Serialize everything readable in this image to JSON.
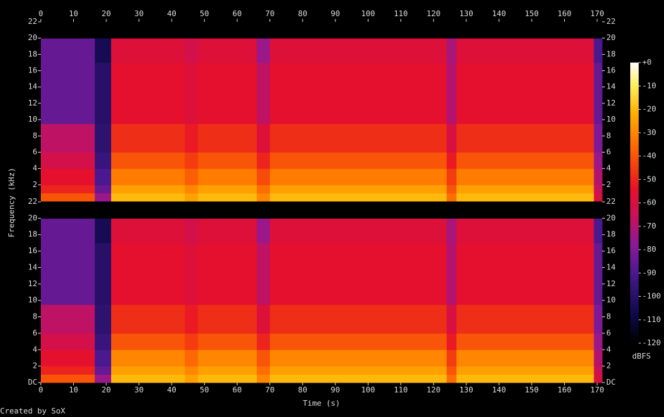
{
  "chart_data": {
    "type": "spectrogram",
    "xlabel": "Time (s)",
    "ylabel": "Frequency (kHz)",
    "footer": "Created by SoX",
    "xlim": [
      0,
      171.5
    ],
    "xticks": [
      0,
      10,
      20,
      30,
      40,
      50,
      60,
      70,
      80,
      90,
      100,
      110,
      120,
      130,
      140,
      150,
      160,
      170
    ],
    "time_edges": [
      0,
      16.5,
      21.5,
      44,
      48,
      66,
      70,
      124,
      127,
      169,
      171.5
    ],
    "freq_edges": [
      0,
      1,
      2,
      4,
      6,
      9.5,
      17,
      20,
      22
    ],
    "channels": [
      {
        "ylim": [
          0,
          22
        ],
        "yticks": [
          2,
          4,
          6,
          8,
          10,
          12,
          14,
          16,
          18,
          20,
          22
        ],
        "values": [
          [
            -40,
            -75,
            -20,
            -25,
            -20,
            -30,
            -20,
            -35,
            -20,
            -60
          ],
          [
            -50,
            -85,
            -25,
            -30,
            -25,
            -35,
            -25,
            -40,
            -25,
            -65
          ],
          [
            -55,
            -90,
            -32,
            -38,
            -32,
            -42,
            -32,
            -45,
            -32,
            -70
          ],
          [
            -62,
            -95,
            -40,
            -45,
            -40,
            -50,
            -40,
            -52,
            -40,
            -75
          ],
          [
            -68,
            -98,
            -48,
            -52,
            -48,
            -58,
            -48,
            -60,
            -48,
            -80
          ],
          [
            -85,
            -100,
            -55,
            -58,
            -55,
            -68,
            -55,
            -70,
            -55,
            -85
          ],
          [
            -85,
            -105,
            -58,
            -62,
            -58,
            -75,
            -58,
            -72,
            -58,
            -90
          ],
          [
            -120,
            -120,
            -120,
            -120,
            -120,
            -120,
            -120,
            -120,
            -120,
            -120
          ]
        ]
      },
      {
        "ylim": [
          0,
          22
        ],
        "yticks": [
          {
            "value": 0,
            "label": "DC"
          },
          2,
          4,
          6,
          8,
          10,
          12,
          14,
          16,
          18,
          20,
          22
        ],
        "values": [
          [
            -40,
            -75,
            -20,
            -25,
            -20,
            -30,
            -20,
            -35,
            -20,
            -60
          ],
          [
            -50,
            -85,
            -25,
            -30,
            -25,
            -35,
            -25,
            -40,
            -25,
            -65
          ],
          [
            -55,
            -90,
            -30,
            -36,
            -30,
            -40,
            -30,
            -45,
            -30,
            -70
          ],
          [
            -62,
            -95,
            -40,
            -45,
            -40,
            -50,
            -40,
            -52,
            -40,
            -75
          ],
          [
            -68,
            -98,
            -48,
            -52,
            -48,
            -58,
            -48,
            -60,
            -48,
            -80
          ],
          [
            -85,
            -100,
            -55,
            -58,
            -55,
            -68,
            -55,
            -70,
            -55,
            -85
          ],
          [
            -85,
            -105,
            -58,
            -62,
            -58,
            -75,
            -58,
            -72,
            -58,
            -90
          ],
          [
            -120,
            -120,
            -120,
            -120,
            -120,
            -120,
            -120,
            -120,
            -120,
            -120
          ]
        ]
      }
    ],
    "colorbar": {
      "label": "dBFS",
      "clim": [
        -120,
        0
      ],
      "ticks": [
        {
          "value": 0,
          "label": "+0"
        },
        -10,
        -20,
        -30,
        -40,
        -50,
        -60,
        -70,
        -80,
        -90,
        -100,
        -110,
        -120
      ]
    }
  }
}
